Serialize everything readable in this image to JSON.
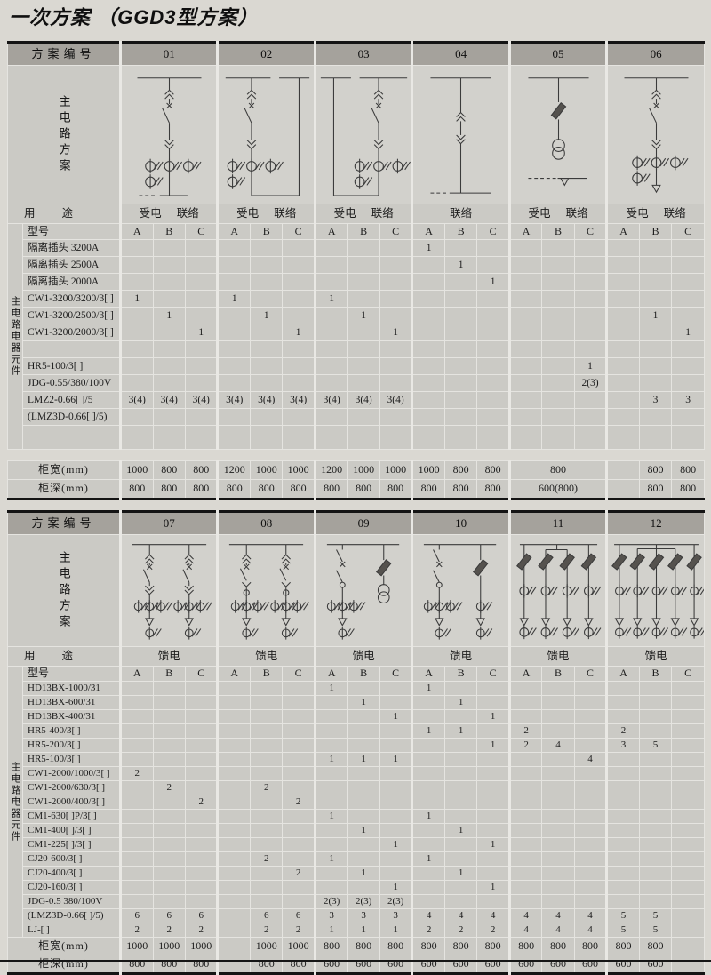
{
  "page_title": "一次方案 （GGD3型方案）",
  "colors": {
    "page_bg": "#dad8d2",
    "cell_bg": "#cbcac5",
    "header_bg": "#a5a29c",
    "diagram_bg": "#d2d1cc",
    "grid_line": "#e5e4e0",
    "frame_line": "#141414"
  },
  "tables": [
    {
      "header_label": "方案编号",
      "circuit_label": "主电路方案",
      "usage_label": "用途",
      "model_label": "型号",
      "components_label": "主电路电器元件",
      "width_label": "柜宽(mm)",
      "depth_label": "柜深(mm)",
      "variants": [
        "A",
        "B",
        "C"
      ],
      "schemes": [
        {
          "id": "01",
          "usage": "受电 联络",
          "diagram": "incoming-breaker-ct-dash"
        },
        {
          "id": "02",
          "usage": "受电 联络",
          "diagram": "incoming-breaker-ct-tie-right"
        },
        {
          "id": "03",
          "usage": "受电 联络",
          "diagram": "incoming-breaker-ct-tie-left"
        },
        {
          "id": "04",
          "usage": "联络",
          "diagram": "drawout-isolator-tie"
        },
        {
          "id": "05",
          "usage": "受电 联络",
          "diagram": "fuse-pt-transformer"
        },
        {
          "id": "06",
          "usage": "受电 联络",
          "diagram": "incoming-breaker-ct-outgoing"
        }
      ],
      "rows": [
        {
          "label": "隔离插头 3200A",
          "cells": [
            "",
            "",
            "",
            "",
            "",
            "",
            "",
            "",
            "",
            "1",
            "",
            "",
            "",
            "",
            "",
            "",
            "",
            ""
          ]
        },
        {
          "label": "隔离插头 2500A",
          "cells": [
            "",
            "",
            "",
            "",
            "",
            "",
            "",
            "",
            "",
            "",
            "1",
            "",
            "",
            "",
            "",
            "",
            "",
            ""
          ]
        },
        {
          "label": "隔离插头 2000A",
          "cells": [
            "",
            "",
            "",
            "",
            "",
            "",
            "",
            "",
            "",
            "",
            "",
            "1",
            "",
            "",
            "",
            "",
            "",
            ""
          ]
        },
        {
          "label": "CW1-3200/3200/3[ ]",
          "cells": [
            "1",
            "",
            "",
            "1",
            "",
            "",
            "1",
            "",
            "",
            "",
            "",
            "",
            "",
            "",
            "",
            "",
            "",
            ""
          ]
        },
        {
          "label": "CW1-3200/2500/3[ ]",
          "cells": [
            "",
            "1",
            "",
            "",
            "1",
            "",
            "",
            "1",
            "",
            "",
            "",
            "",
            "",
            "",
            "",
            "",
            "1",
            ""
          ]
        },
        {
          "label": "CW1-3200/2000/3[ ]",
          "cells": [
            "",
            "",
            "1",
            "",
            "",
            "1",
            "",
            "",
            "1",
            "",
            "",
            "",
            "",
            "",
            "",
            "",
            "",
            "1"
          ]
        },
        {
          "label": "",
          "cells": [
            "",
            "",
            "",
            "",
            "",
            "",
            "",
            "",
            "",
            "",
            "",
            "",
            "",
            "",
            "",
            "",
            "",
            ""
          ]
        },
        {
          "label": "HR5-100/3[ ]",
          "cells": [
            "",
            "",
            "",
            "",
            "",
            "",
            "",
            "",
            "",
            "",
            "",
            "",
            "",
            "",
            "1",
            "",
            "",
            ""
          ]
        },
        {
          "label": "JDG-0.55/380/100V",
          "cells": [
            "",
            "",
            "",
            "",
            "",
            "",
            "",
            "",
            "",
            "",
            "",
            "",
            "",
            "",
            "2(3)",
            "",
            "",
            ""
          ]
        },
        {
          "label": "LMZ2-0.66[ ]/5",
          "cells": [
            "3(4)",
            "3(4)",
            "3(4)",
            "3(4)",
            "3(4)",
            "3(4)",
            "3(4)",
            "3(4)",
            "3(4)",
            "",
            "",
            "",
            "",
            "",
            "",
            "",
            "3",
            "3"
          ]
        },
        {
          "label": "(LMZ3D-0.66[ ]/5)",
          "cells": [
            "",
            "",
            "",
            "",
            "",
            "",
            "",
            "",
            "",
            "",
            "",
            "",
            "",
            "",
            "",
            "",
            "",
            ""
          ]
        },
        {
          "label": "",
          "tall": true,
          "cells": [
            "",
            "",
            "",
            "",
            "",
            "",
            "",
            "",
            "",
            "",
            "",
            "",
            "",
            "",
            "",
            "",
            "",
            ""
          ]
        }
      ],
      "gap_before_size_rows": true,
      "width_cells": [
        "1000",
        "800",
        "800",
        "1200",
        "1000",
        "1000",
        "1200",
        "1000",
        "1000",
        "1000",
        "800",
        "800",
        {
          "v": "800",
          "span": 3
        },
        "",
        "800",
        "800"
      ],
      "depth_cells": [
        "800",
        "800",
        "800",
        "800",
        "800",
        "800",
        "800",
        "800",
        "800",
        "800",
        "800",
        "800",
        {
          "v": "600(800)",
          "span": 3
        },
        "",
        "800",
        "800"
      ]
    },
    {
      "header_label": "方案编号",
      "circuit_label": "主电路方案",
      "usage_label": "用途",
      "model_label": "型号",
      "components_label": "主电路电器元件",
      "width_label": "柜宽(mm)",
      "depth_label": "柜深(mm)",
      "variants": [
        "A",
        "B",
        "C"
      ],
      "schemes": [
        {
          "id": "07",
          "usage": "馈电",
          "diagram": "dual-drawout-breaker-feeders"
        },
        {
          "id": "08",
          "usage": "馈电",
          "diagram": "dual-breaker-contactor-feeders"
        },
        {
          "id": "09",
          "usage": "馈电",
          "diagram": "switch-contactor-feeder-with-pt"
        },
        {
          "id": "10",
          "usage": "馈电",
          "diagram": "switch-contactor-and-fuse-feeders"
        },
        {
          "id": "11",
          "usage": "馈电",
          "diagram": "four-fuse-feeders"
        },
        {
          "id": "12",
          "usage": "馈电",
          "diagram": "five-fuse-feeders"
        }
      ],
      "rows": [
        {
          "label": "HD13BX-1000/31",
          "cells": [
            "",
            "",
            "",
            "",
            "",
            "",
            "1",
            "",
            "",
            "1",
            "",
            "",
            "",
            "",
            "",
            "",
            "",
            ""
          ]
        },
        {
          "label": "HD13BX-600/31",
          "cells": [
            "",
            "",
            "",
            "",
            "",
            "",
            "",
            "1",
            "",
            "",
            "1",
            "",
            "",
            "",
            "",
            "",
            "",
            ""
          ]
        },
        {
          "label": "HD13BX-400/31",
          "cells": [
            "",
            "",
            "",
            "",
            "",
            "",
            "",
            "",
            "1",
            "",
            "",
            "1",
            "",
            "",
            "",
            "",
            "",
            ""
          ]
        },
        {
          "label": "HR5-400/3[ ]",
          "cells": [
            "",
            "",
            "",
            "",
            "",
            "",
            "",
            "",
            "",
            "1",
            "1",
            "",
            "2",
            "",
            "",
            "2",
            "",
            ""
          ]
        },
        {
          "label": "HR5-200/3[ ]",
          "cells": [
            "",
            "",
            "",
            "",
            "",
            "",
            "",
            "",
            "",
            "",
            "",
            "1",
            "2",
            "4",
            "",
            "3",
            "5",
            ""
          ]
        },
        {
          "label": "HR5-100/3[ ]",
          "cells": [
            "",
            "",
            "",
            "",
            "",
            "",
            "1",
            "1",
            "1",
            "",
            "",
            "",
            "",
            "",
            "4",
            "",
            "",
            ""
          ]
        },
        {
          "label": "CW1-2000/1000/3[ ]",
          "cells": [
            "2",
            "",
            "",
            "",
            "",
            "",
            "",
            "",
            "",
            "",
            "",
            "",
            "",
            "",
            "",
            "",
            "",
            ""
          ]
        },
        {
          "label": "CW1-2000/630/3[ ]",
          "cells": [
            "",
            "2",
            "",
            "",
            "2",
            "",
            "",
            "",
            "",
            "",
            "",
            "",
            "",
            "",
            "",
            "",
            "",
            ""
          ]
        },
        {
          "label": "CW1-2000/400/3[ ]",
          "cells": [
            "",
            "",
            "2",
            "",
            "",
            "2",
            "",
            "",
            "",
            "",
            "",
            "",
            "",
            "",
            "",
            "",
            "",
            ""
          ]
        },
        {
          "label": "CM1-630[ ]P/3[ ]",
          "cells": [
            "",
            "",
            "",
            "",
            "",
            "",
            "1",
            "",
            "",
            "1",
            "",
            "",
            "",
            "",
            "",
            "",
            "",
            ""
          ]
        },
        {
          "label": "CM1-400[ ]/3[ ]",
          "cells": [
            "",
            "",
            "",
            "",
            "",
            "",
            "",
            "1",
            "",
            "",
            "1",
            "",
            "",
            "",
            "",
            "",
            "",
            ""
          ]
        },
        {
          "label": "CM1-225[ ]/3[ ]",
          "cells": [
            "",
            "",
            "",
            "",
            "",
            "",
            "",
            "",
            "1",
            "",
            "",
            "1",
            "",
            "",
            "",
            "",
            "",
            ""
          ]
        },
        {
          "label": "CJ20-600/3[ ]",
          "cells": [
            "",
            "",
            "",
            "",
            "2",
            "",
            "1",
            "",
            "",
            "1",
            "",
            "",
            "",
            "",
            "",
            "",
            "",
            ""
          ]
        },
        {
          "label": "CJ20-400/3[ ]",
          "cells": [
            "",
            "",
            "",
            "",
            "",
            "2",
            "",
            "1",
            "",
            "",
            "1",
            "",
            "",
            "",
            "",
            "",
            "",
            ""
          ]
        },
        {
          "label": "CJ20-160/3[ ]",
          "cells": [
            "",
            "",
            "",
            "",
            "",
            "",
            "",
            "",
            "1",
            "",
            "",
            "1",
            "",
            "",
            "",
            "",
            "",
            ""
          ]
        },
        {
          "label": "JDG-0.5  380/100V",
          "cells": [
            "",
            "",
            "",
            "",
            "",
            "",
            "2(3)",
            "2(3)",
            "2(3)",
            "",
            "",
            "",
            "",
            "",
            "",
            "",
            "",
            ""
          ]
        },
        {
          "label": "(LMZ3D-0.66[ ]/5)",
          "cells": [
            "6",
            "6",
            "6",
            "",
            "6",
            "6",
            "3",
            "3",
            "3",
            "4",
            "4",
            "4",
            "4",
            "4",
            "4",
            "5",
            "5",
            ""
          ]
        },
        {
          "label": "LJ-[ ]",
          "cells": [
            "2",
            "2",
            "2",
            "",
            "2",
            "2",
            "1",
            "1",
            "1",
            "2",
            "2",
            "2",
            "4",
            "4",
            "4",
            "5",
            "5",
            ""
          ]
        }
      ],
      "gap_before_size_rows": false,
      "width_cells": [
        "1000",
        "1000",
        "1000",
        "",
        "1000",
        "1000",
        "800",
        "800",
        "800",
        "800",
        "800",
        "800",
        "800",
        "800",
        "800",
        "800",
        "800",
        ""
      ],
      "depth_cells": [
        "800",
        "800",
        "800",
        "",
        "800",
        "800",
        "600",
        "600",
        "600",
        "600",
        "600",
        "600",
        "600",
        "600",
        "600",
        "600",
        "600",
        ""
      ]
    }
  ]
}
